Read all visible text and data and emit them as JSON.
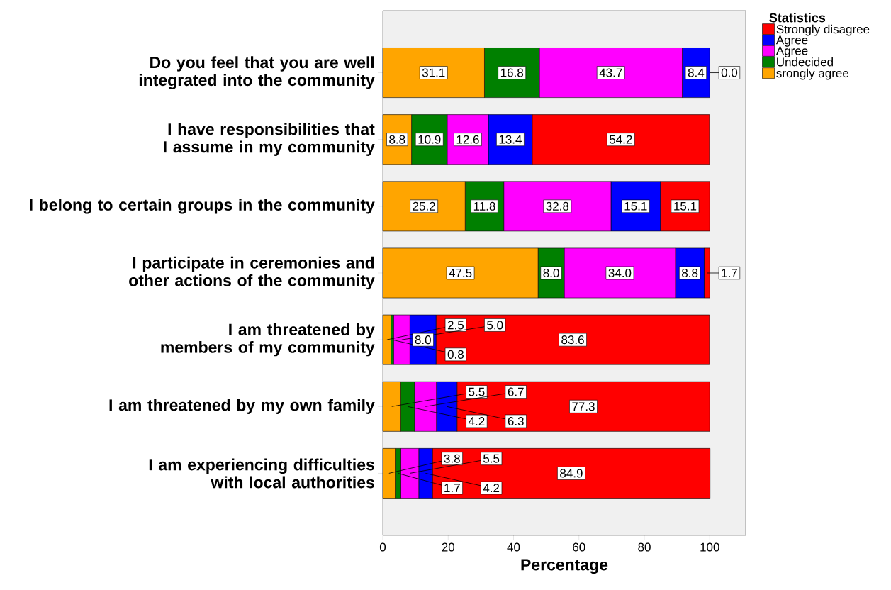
{
  "chart_data": {
    "type": "bar",
    "orientation": "horizontal",
    "stacked": true,
    "xlabel": "Percentage",
    "legend_title": "Statistics",
    "legend": "top right",
    "categories": [
      "Do you feel that you are well integrated into the community",
      "I have responsibilities that I assume in my community",
      "I belong to certain groups in the community",
      "I participate in ceremonies and other actions of the community",
      "I am threatened by members of my community",
      "I am threatened by my own family",
      "I am experiencing difficulties with local authorities"
    ],
    "series": [
      {
        "name": "srongly agree",
        "color": "#ffa500",
        "values": [
          31.1,
          8.8,
          25.2,
          47.5,
          2.5,
          5.5,
          3.8
        ],
        "value_labels": [
          "31.1",
          "8.8",
          "25.2",
          "47.5",
          "2.5",
          "5.5",
          "3.8"
        ]
      },
      {
        "name": "Undecided",
        "color": "#008000",
        "values": [
          16.8,
          10.9,
          11.8,
          8.0,
          0.8,
          4.2,
          1.7
        ],
        "value_labels": [
          "16.8",
          "10.9",
          "11.8",
          "8.0",
          "0.8",
          "4.2",
          "1.7"
        ]
      },
      {
        "name": "Agree",
        "color": "#ff00ff",
        "values": [
          43.7,
          12.6,
          32.8,
          34.0,
          5.0,
          6.7,
          5.5
        ],
        "value_labels": [
          "43.7",
          "12.6",
          "32.8",
          "34.0",
          "5.0",
          "6.7",
          "5.5"
        ]
      },
      {
        "name": "Agree",
        "color": "#0000ff",
        "values": [
          8.4,
          13.4,
          15.1,
          8.8,
          8.0,
          6.3,
          4.2
        ],
        "value_labels": [
          "8.4",
          "13.4",
          "15.1",
          "8.8",
          "8.0",
          "6.3",
          "4.2"
        ]
      },
      {
        "name": "Strongly disagree",
        "color": "#ff0000",
        "values": [
          0.0,
          54.2,
          15.1,
          1.7,
          83.6,
          77.3,
          84.9
        ],
        "value_labels": [
          "0.0",
          "54.2",
          "15.1",
          "1.7",
          "83.6",
          "77.3",
          "84.9"
        ]
      }
    ],
    "xlim": [
      0,
      111
    ],
    "xticks": [
      0,
      20,
      40,
      60,
      80,
      100
    ]
  }
}
